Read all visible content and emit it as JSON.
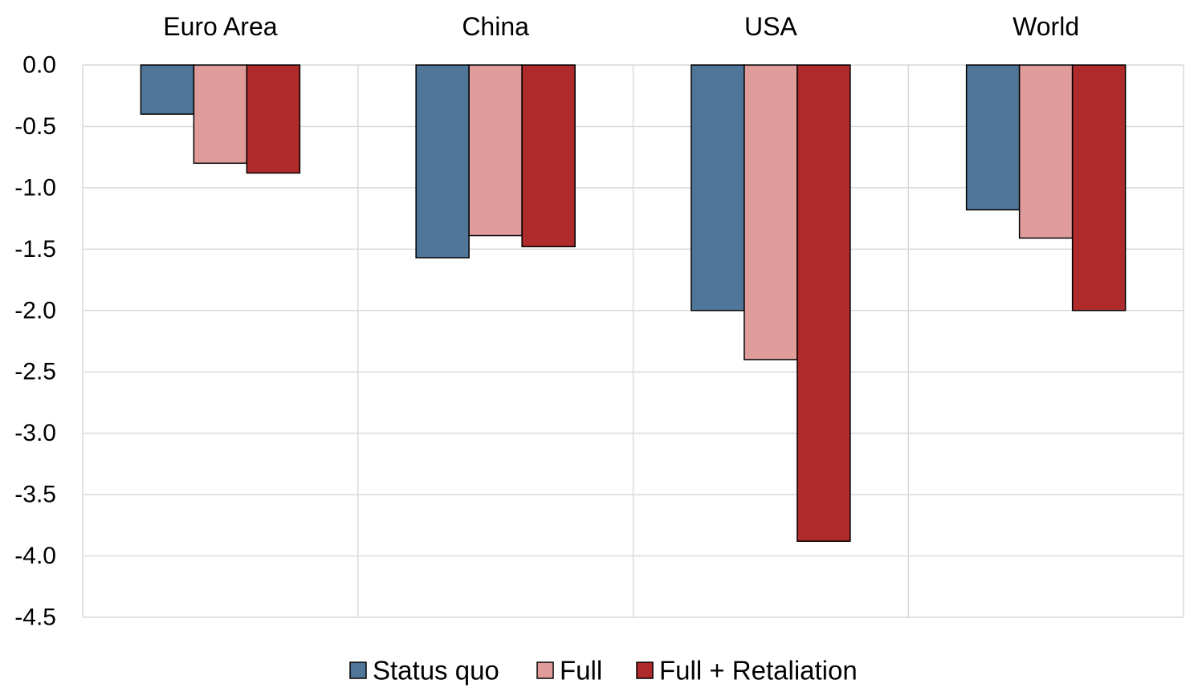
{
  "chart_data": {
    "type": "bar",
    "title": "",
    "xlabel": "",
    "ylabel": "",
    "categories": [
      "Euro Area",
      "China",
      "USA",
      "World"
    ],
    "series": [
      {
        "name": "Status quo",
        "color": "#4f7598",
        "values": [
          -0.4,
          -1.57,
          -2.0,
          -1.18
        ]
      },
      {
        "name": "Full",
        "color": "#e09c9a",
        "values": [
          -0.8,
          -1.39,
          -2.4,
          -1.41
        ]
      },
      {
        "name": "Full + Retaliation",
        "color": "#ae2a2b",
        "values": [
          -0.88,
          -1.48,
          -3.88,
          -2.0
        ]
      }
    ],
    "y_ticks": [
      "0.0",
      "-0.5",
      "-1.0",
      "-1.5",
      "-2.0",
      "-2.5",
      "-3.0",
      "-3.5",
      "-4.0",
      "-4.5"
    ],
    "ylim": [
      -4.5,
      0
    ],
    "category_labels_position": "top",
    "grid": true,
    "legend_position": "bottom-center"
  }
}
